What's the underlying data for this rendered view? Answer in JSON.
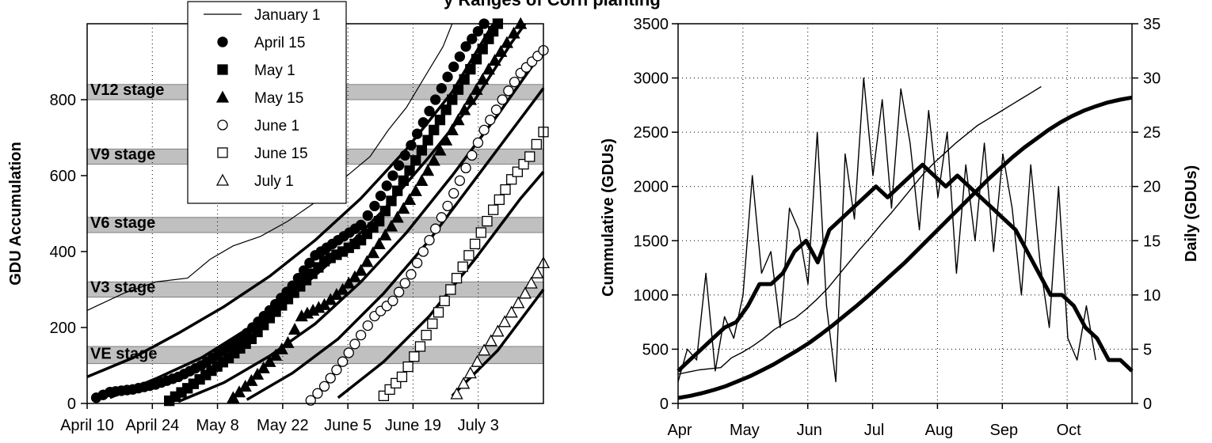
{
  "title_fragment": "y Ranges of Corn planting",
  "chart_data": [
    {
      "type": "line",
      "xlabel": "",
      "ylabel": "GDU Accumulation",
      "x_tick_labels": [
        "April 10",
        "April 24",
        "May 8",
        "May 22",
        "June 5",
        "June 19",
        "July 3"
      ],
      "ylim": [
        0,
        1000
      ],
      "y_ticks": [
        0,
        200,
        400,
        600,
        800
      ],
      "grid": "vertical dotted",
      "legend_position": "top-center",
      "stage_bands": [
        {
          "label": "VE stage",
          "low": 105,
          "high": 150
        },
        {
          "label": "V3 stage",
          "low": 280,
          "high": 320
        },
        {
          "label": "V6 stage",
          "low": 450,
          "high": 490
        },
        {
          "label": "V9 stage",
          "low": 630,
          "high": 670
        },
        {
          "label": "V12 stage",
          "low": 800,
          "high": 840
        }
      ],
      "series": [
        {
          "name": "January 1",
          "marker": "line",
          "points": [
            [
              0,
              245
            ],
            [
              8,
              290
            ],
            [
              15,
              320
            ],
            [
              22,
              330
            ],
            [
              27,
              380
            ],
            [
              32,
              415
            ],
            [
              38,
              440
            ],
            [
              44,
              480
            ],
            [
              50,
              530
            ],
            [
              56,
              590
            ],
            [
              62,
              650
            ],
            [
              66,
              720
            ],
            [
              70,
              780
            ],
            [
              74,
              860
            ],
            [
              78,
              940
            ],
            [
              80,
              1000
            ]
          ]
        },
        {
          "name": "April 15",
          "marker": "filled-circle",
          "points": [
            [
              2,
              15
            ],
            [
              5,
              30
            ],
            [
              10,
              37
            ],
            [
              15,
              50
            ],
            [
              20,
              70
            ],
            [
              25,
              100
            ],
            [
              30,
              140
            ],
            [
              35,
              185
            ],
            [
              40,
              245
            ],
            [
              45,
              310
            ],
            [
              50,
              390
            ],
            [
              55,
              430
            ],
            [
              60,
              470
            ],
            [
              63,
              520
            ],
            [
              67,
              600
            ],
            [
              71,
              680
            ],
            [
              75,
              770
            ],
            [
              79,
              860
            ],
            [
              83,
              940
            ],
            [
              87,
              1000
            ]
          ]
        },
        {
          "name": "May 1",
          "marker": "filled-square",
          "points": [
            [
              18,
              7
            ],
            [
              22,
              40
            ],
            [
              26,
              75
            ],
            [
              31,
              120
            ],
            [
              36,
              170
            ],
            [
              40,
              225
            ],
            [
              44,
              275
            ],
            [
              48,
              325
            ],
            [
              52,
              375
            ],
            [
              56,
              400
            ],
            [
              60,
              430
            ],
            [
              64,
              480
            ],
            [
              68,
              560
            ],
            [
              72,
              640
            ],
            [
              76,
              720
            ],
            [
              80,
              800
            ],
            [
              84,
              880
            ],
            [
              88,
              960
            ],
            [
              90,
              1000
            ]
          ]
        },
        {
          "name": "May 15",
          "marker": "filled-triangle",
          "points": [
            [
              32,
              15
            ],
            [
              36,
              60
            ],
            [
              40,
              110
            ],
            [
              44,
              160
            ],
            [
              47,
              230
            ],
            [
              52,
              260
            ],
            [
              56,
              300
            ],
            [
              60,
              350
            ],
            [
              64,
              420
            ],
            [
              68,
              490
            ],
            [
              72,
              560
            ],
            [
              76,
              640
            ],
            [
              80,
              720
            ],
            [
              84,
              800
            ],
            [
              88,
              880
            ],
            [
              92,
              950
            ],
            [
              95,
              1000
            ]
          ]
        },
        {
          "name": "June 1",
          "marker": "open-circle",
          "points": [
            [
              49,
              8
            ],
            [
              52,
              45
            ],
            [
              56,
              110
            ],
            [
              60,
              180
            ],
            [
              63,
              230
            ],
            [
              67,
              270
            ],
            [
              71,
              340
            ],
            [
              75,
              430
            ],
            [
              79,
              520
            ],
            [
              83,
              620
            ],
            [
              87,
              720
            ],
            [
              91,
              800
            ],
            [
              95,
              870
            ],
            [
              100,
              930
            ]
          ]
        },
        {
          "name": "June 15",
          "marker": "open-square",
          "points": [
            [
              65,
              20
            ],
            [
              69,
              70
            ],
            [
              73,
              150
            ],
            [
              77,
              240
            ],
            [
              81,
              330
            ],
            [
              85,
              420
            ],
            [
              89,
              510
            ],
            [
              93,
              590
            ],
            [
              97,
              650
            ],
            [
              100,
              715
            ]
          ]
        },
        {
          "name": "July 1",
          "marker": "open-triangle",
          "points": [
            [
              81,
              25
            ],
            [
              84,
              80
            ],
            [
              87,
              140
            ],
            [
              90,
              190
            ],
            [
              93,
              240
            ],
            [
              96,
              290
            ],
            [
              100,
              370
            ]
          ]
        }
      ],
      "smooth_fits": [
        {
          "points": [
            [
              0,
              70
            ],
            [
              10,
              120
            ],
            [
              20,
              185
            ],
            [
              30,
              255
            ],
            [
              40,
              335
            ],
            [
              50,
              430
            ],
            [
              60,
              540
            ],
            [
              70,
              670
            ],
            [
              80,
              820
            ],
            [
              89,
              1000
            ]
          ]
        },
        {
          "points": [
            [
              5,
              15
            ],
            [
              15,
              65
            ],
            [
              25,
              120
            ],
            [
              35,
              195
            ],
            [
              45,
              285
            ],
            [
              55,
              390
            ],
            [
              65,
              510
            ],
            [
              75,
              650
            ],
            [
              85,
              800
            ],
            [
              93,
              950
            ],
            [
              96,
              1000
            ]
          ]
        },
        {
          "points": [
            [
              20,
              5
            ],
            [
              30,
              55
            ],
            [
              40,
              125
            ],
            [
              50,
              210
            ],
            [
              60,
              320
            ],
            [
              70,
              450
            ],
            [
              80,
              600
            ],
            [
              90,
              760
            ],
            [
              100,
              930
            ]
          ]
        },
        {
          "points": [
            [
              35,
              10
            ],
            [
              45,
              80
            ],
            [
              55,
              170
            ],
            [
              65,
              290
            ],
            [
              75,
              430
            ],
            [
              85,
              590
            ],
            [
              95,
              750
            ],
            [
              100,
              830
            ]
          ]
        },
        {
          "points": [
            [
              55,
              15
            ],
            [
              65,
              110
            ],
            [
              75,
              230
            ],
            [
              85,
              380
            ],
            [
              95,
              540
            ],
            [
              100,
              610
            ]
          ]
        },
        {
          "points": [
            [
              80,
              20
            ],
            [
              90,
              140
            ],
            [
              100,
              300
            ]
          ]
        }
      ]
    },
    {
      "type": "line",
      "xlabel": "",
      "ylabel": "Cummulative (GDUs)",
      "y2label": "Daily (GDUs)",
      "x_tick_labels": [
        "Apr",
        "May",
        "Jun",
        "Jul",
        "Aug",
        "Sep",
        "Oct"
      ],
      "ylim": [
        0,
        3500
      ],
      "y_ticks": [
        0,
        500,
        1000,
        1500,
        2000,
        2500,
        3000,
        3500
      ],
      "y2lim": [
        0,
        35
      ],
      "y2_ticks": [
        0,
        5,
        10,
        15,
        20,
        25,
        30,
        35
      ],
      "grid": "dotted",
      "series": [
        {
          "name": "",
          "axis": "left",
          "style": "thick",
          "values": [
            50,
            70,
            95,
            125,
            160,
            205,
            250,
            305,
            360,
            425,
            490,
            560,
            640,
            725,
            815,
            905,
            1000,
            1100,
            1200,
            1300,
            1410,
            1520,
            1630,
            1740,
            1850,
            1960,
            2070,
            2170,
            2270,
            2360,
            2440,
            2520,
            2590,
            2650,
            2700,
            2740,
            2775,
            2800,
            2820
          ]
        },
        {
          "name": "",
          "axis": "left",
          "style": "thin",
          "values": [
            270,
            290,
            310,
            320,
            330,
            420,
            470,
            530,
            600,
            680,
            740,
            790,
            870,
            960,
            1060,
            1180,
            1300,
            1420,
            1530,
            1650,
            1760,
            1880,
            2000,
            2120,
            2220,
            2310,
            2400,
            2480,
            2560,
            2620,
            2680,
            2740,
            2800,
            2860,
            2920
          ]
        },
        {
          "name": "",
          "axis": "right",
          "style": "thick",
          "values": [
            3,
            4,
            5,
            6,
            7,
            7.5,
            9,
            11,
            11,
            12,
            14,
            15,
            13,
            16,
            17,
            18,
            19,
            20,
            19,
            20,
            21,
            22,
            21,
            20,
            21,
            20,
            19,
            18,
            17,
            16,
            14,
            12,
            10,
            10,
            9,
            7,
            6,
            4,
            4,
            3
          ]
        },
        {
          "name": "",
          "axis": "right",
          "style": "thin",
          "values": [
            2,
            5,
            4,
            12,
            3,
            8,
            6,
            10,
            21,
            12,
            14,
            7,
            18,
            16,
            11,
            25,
            9,
            2,
            23,
            17,
            30,
            21,
            28,
            18,
            29,
            24,
            16,
            27,
            19,
            25,
            12,
            22,
            15,
            24,
            14,
            23,
            18,
            10,
            22,
            13,
            7,
            20,
            6,
            4,
            9,
            4
          ]
        }
      ]
    }
  ]
}
